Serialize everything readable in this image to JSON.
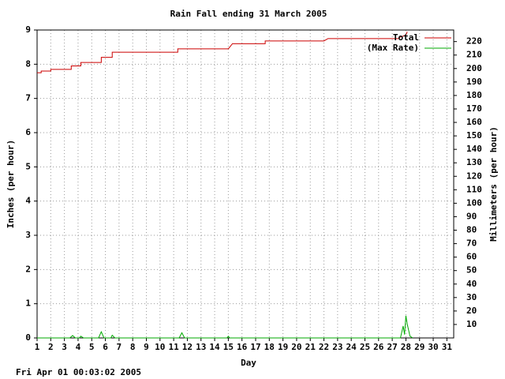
{
  "chart_data": {
    "type": "line",
    "title": "Rain Fall ending 31 March 2005",
    "x_label": "Day",
    "y_label": "Inches (per hour)",
    "y2_label": "Millimeters (per hour)",
    "footer": "Fri Apr 01 00:03:02 2005",
    "xlim": [
      1,
      31.5
    ],
    "xticks": [
      1,
      2,
      3,
      4,
      5,
      6,
      7,
      8,
      9,
      10,
      11,
      12,
      13,
      14,
      15,
      16,
      17,
      18,
      19,
      20,
      21,
      22,
      23,
      24,
      25,
      26,
      27,
      28,
      29,
      30,
      31
    ],
    "ylim": [
      0,
      9
    ],
    "yticks": [
      0,
      1,
      2,
      3,
      4,
      5,
      6,
      7,
      8,
      9
    ],
    "y2lim": [
      0,
      228.6
    ],
    "y2ticks": [
      10,
      20,
      30,
      40,
      50,
      60,
      70,
      80,
      90,
      100,
      110,
      120,
      130,
      140,
      150,
      160,
      170,
      180,
      190,
      200,
      210,
      220
    ],
    "grid": true,
    "legend": "top-right",
    "series": [
      {
        "name": "Total",
        "color": "#cc0000",
        "x": [
          1,
          1.3,
          1.3,
          2,
          2,
          3.5,
          3.5,
          4.2,
          4.2,
          5.7,
          5.7,
          6.5,
          6.5,
          11.3,
          11.3,
          15,
          15.3,
          17.7,
          17.7,
          22,
          22.3,
          27.5,
          27.5,
          28,
          28.1
        ],
        "values": [
          7.75,
          7.75,
          7.8,
          7.8,
          7.85,
          7.85,
          7.95,
          7.95,
          8.05,
          8.05,
          8.2,
          8.2,
          8.35,
          8.35,
          8.45,
          8.45,
          8.6,
          8.6,
          8.68,
          8.68,
          8.75,
          8.75,
          8.78,
          8.85,
          8.95
        ]
      },
      {
        "name": "(Max Rate)",
        "color": "#00aa00",
        "x": [
          1,
          3.4,
          3.6,
          3.8,
          4.1,
          4.2,
          4.4,
          5.5,
          5.7,
          5.9,
          6.4,
          6.5,
          6.7,
          11.4,
          11.6,
          11.8,
          14.9,
          15,
          15.1,
          27.6,
          27.8,
          27.9,
          28,
          28.1,
          28.3,
          28.5
        ],
        "values": [
          0,
          0,
          0.07,
          0,
          0,
          0.05,
          0,
          0,
          0.18,
          0,
          0,
          0.08,
          0,
          0,
          0.15,
          0,
          0,
          0.05,
          0,
          0,
          0.35,
          0.1,
          0.65,
          0.4,
          0.05,
          0
        ]
      }
    ]
  }
}
